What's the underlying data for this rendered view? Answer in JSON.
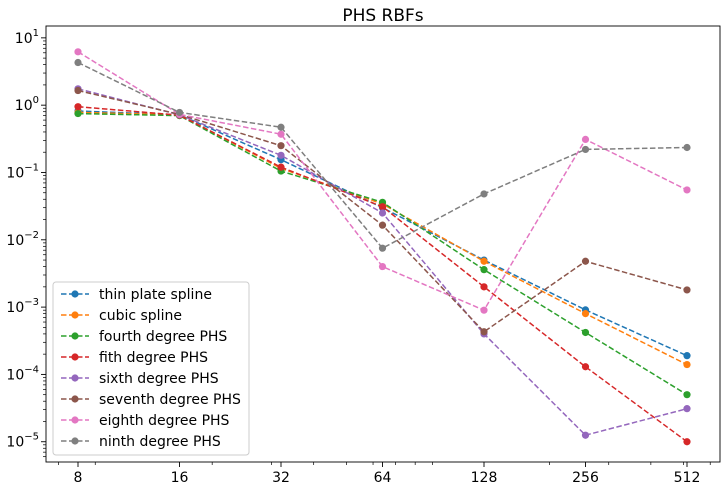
{
  "chart_data": {
    "type": "line",
    "title": "PHS RBFs",
    "xlabel": "",
    "ylabel": "",
    "x_scale": "log2",
    "y_scale": "log10",
    "x": [
      8,
      16,
      32,
      64,
      128,
      256,
      512
    ],
    "x_tick_labels": [
      "8",
      "16",
      "32",
      "64",
      "128",
      "256",
      "512"
    ],
    "ylim": [
      5e-06,
      15
    ],
    "y_ticks": [
      {
        "base": "10",
        "exp": "1"
      },
      {
        "base": "10",
        "exp": "0"
      },
      {
        "base": "10",
        "exp": "−1"
      },
      {
        "base": "10",
        "exp": "−2"
      },
      {
        "base": "10",
        "exp": "−3"
      },
      {
        "base": "10",
        "exp": "−4"
      },
      {
        "base": "10",
        "exp": "−5"
      }
    ],
    "y_tick_values": [
      10,
      1,
      0.1,
      0.01,
      0.001,
      0.0001,
      1e-05
    ],
    "grid": false,
    "legend_position": "lower-left",
    "line_style": "dashed",
    "marker": "circle",
    "series": [
      {
        "name": "thin plate spline",
        "color": "#1f77b4",
        "values": [
          0.82,
          0.72,
          0.155,
          0.03,
          0.005,
          0.00091,
          0.00019
        ]
      },
      {
        "name": "cubic spline",
        "color": "#ff7f0e",
        "values": [
          0.78,
          0.72,
          0.115,
          0.034,
          0.0048,
          0.0008,
          0.00014
        ]
      },
      {
        "name": "fourth degree PHS",
        "color": "#2ca02c",
        "values": [
          0.75,
          0.7,
          0.105,
          0.036,
          0.0036,
          0.00042,
          5e-05
        ]
      },
      {
        "name": "fith degree PHS",
        "color": "#d62728",
        "values": [
          0.95,
          0.71,
          0.12,
          0.031,
          0.002,
          0.00013,
          1e-05
        ]
      },
      {
        "name": "sixth degree PHS",
        "color": "#9467bd",
        "values": [
          1.75,
          0.72,
          0.18,
          0.025,
          0.0004,
          1.25e-05,
          3.1e-05
        ]
      },
      {
        "name": "seventh degree PHS",
        "color": "#8c564b",
        "values": [
          1.65,
          0.73,
          0.25,
          0.0165,
          0.00043,
          0.0048,
          0.0018
        ]
      },
      {
        "name": "eighth degree PHS",
        "color": "#e377c2",
        "values": [
          6.2,
          0.73,
          0.37,
          0.004,
          0.0009,
          0.31,
          0.055
        ]
      },
      {
        "name": "ninth degree PHS",
        "color": "#7f7f7f",
        "values": [
          4.3,
          0.78,
          0.47,
          0.0075,
          0.048,
          0.22,
          0.235
        ]
      }
    ]
  }
}
